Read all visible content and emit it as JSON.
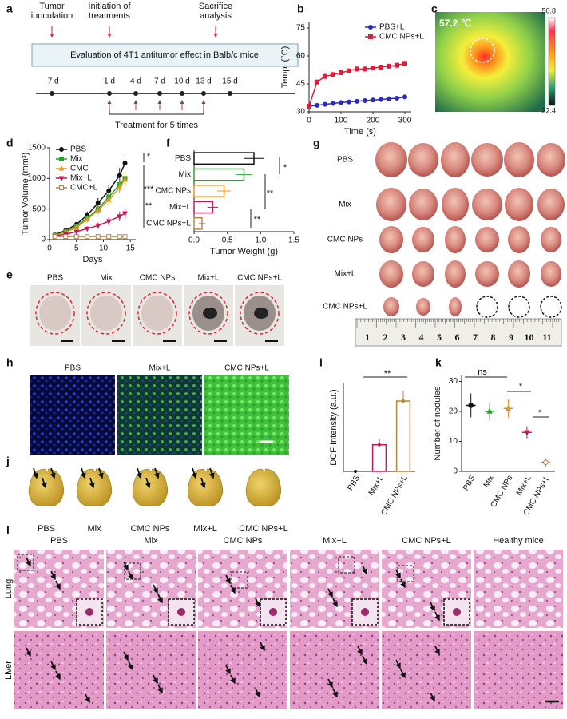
{
  "panel_labels": [
    "a",
    "b",
    "c",
    "d",
    "e",
    "f",
    "g",
    "h",
    "i",
    "j",
    "k",
    "l"
  ],
  "timeline": {
    "title": "Evaluation of 4T1 antitumor effect in Balb/c mice",
    "events": [
      [
        "Tumor",
        "inoculation"
      ],
      [
        "Initiation of",
        "treatments"
      ],
      [
        "Sacrifice",
        "analysis"
      ]
    ],
    "days": [
      "-7 d",
      "1 d",
      "4 d",
      "7 d",
      "10 d",
      "13 d",
      "15 d"
    ],
    "note": "Treatment for 5 times"
  },
  "thermal": {
    "temperature": "57.2 ℃",
    "colorbar_lim": [
      22.4,
      50.8
    ]
  },
  "tumor_photos": {
    "labels": [
      "PBS",
      "Mix",
      "CMC NPs",
      "Mix+L",
      "CMC NPs+L"
    ]
  },
  "excised_tumors": {
    "rows": [
      "PBS",
      "Mix",
      "CMC NPs",
      "Mix+L",
      "CMC NPs+L"
    ],
    "ruler": [
      1,
      2,
      3,
      4,
      5,
      6,
      7,
      8,
      9,
      10,
      11
    ]
  },
  "fluorescence": {
    "labels": [
      "PBS",
      "Mix+L",
      "CMC NPs+L"
    ]
  },
  "lungs": {
    "labels": [
      "PBS",
      "Mix",
      "CMC NPs",
      "Mix+L",
      "CMC NPs+L"
    ]
  },
  "histology": {
    "columns": [
      "PBS",
      "Mix",
      "CMC NPs",
      "Mix+L",
      "CMC NPs+L",
      "Healthy mice"
    ],
    "rows": [
      "Lung",
      "Liver"
    ]
  },
  "chart_data": [
    {
      "type": "line",
      "xlabel": "Time (s)",
      "ylabel": "Temp. (°C)",
      "legend": "upper right",
      "x": [
        0,
        25,
        50,
        75,
        100,
        125,
        150,
        175,
        200,
        225,
        250,
        275,
        300
      ],
      "xlim": [
        0,
        320
      ],
      "xticks": [
        0,
        100,
        200,
        300
      ],
      "ylim": [
        30,
        78
      ],
      "yticks": [
        30,
        45,
        60,
        75
      ],
      "series": [
        {
          "name": "PBS+L",
          "color": "#2b2bb8",
          "marker": "circle",
          "values": [
            33,
            33.5,
            34,
            34.5,
            35,
            35.3,
            35.6,
            36,
            36.3,
            36.6,
            37,
            37.3,
            38
          ]
        },
        {
          "name": "CMC NPs+L",
          "color": "#d4213d",
          "marker": "square",
          "values": [
            33,
            46,
            49,
            50,
            51,
            52,
            53,
            53,
            53.5,
            54,
            54.5,
            55,
            56
          ]
        }
      ]
    },
    {
      "type": "line",
      "xlabel": "Days",
      "ylabel": "Tumor Volume (mm³)",
      "legend": "upper left",
      "x": [
        1,
        3,
        5,
        7,
        9,
        11,
        13,
        14
      ],
      "xlim": [
        0,
        16
      ],
      "xticks": [
        0,
        5,
        10,
        15
      ],
      "ylim": [
        0,
        1500
      ],
      "yticks": [
        0,
        500,
        1000,
        1500
      ],
      "annotations": [
        "*",
        "***",
        "**"
      ],
      "series": [
        {
          "name": "PBS",
          "color": "#111111",
          "marker": "circle",
          "values": [
            80,
            150,
            250,
            400,
            600,
            800,
            1050,
            1250
          ],
          "errors": [
            10,
            25,
            40,
            60,
            80,
            100,
            120,
            120
          ]
        },
        {
          "name": "Mix",
          "color": "#2ca02c",
          "marker": "square",
          "values": [
            70,
            130,
            220,
            350,
            500,
            700,
            900,
            1000
          ],
          "errors": [
            10,
            20,
            35,
            50,
            70,
            90,
            100,
            100
          ]
        },
        {
          "name": "CMC",
          "color": "#e69524",
          "marker": "triangle",
          "values": [
            70,
            120,
            200,
            330,
            480,
            650,
            850,
            980
          ],
          "errors": [
            10,
            20,
            30,
            50,
            60,
            80,
            90,
            100
          ]
        },
        {
          "name": "Mix+L",
          "color": "#c2185b",
          "marker": "triangle-down",
          "values": [
            60,
            90,
            130,
            180,
            230,
            300,
            380,
            430
          ],
          "errors": [
            10,
            15,
            25,
            35,
            50,
            70,
            80,
            90
          ]
        },
        {
          "name": "CMC+L",
          "color": "#b08850",
          "marker": "square",
          "values": [
            50,
            50,
            50,
            50,
            50,
            50,
            50,
            50
          ],
          "errors": [
            10,
            10,
            10,
            15,
            15,
            20,
            20,
            20
          ]
        }
      ]
    },
    {
      "type": "bar",
      "orientation": "horizontal",
      "xlabel": "Tumor Weight (g)",
      "categories": [
        "PBS",
        "Mix",
        "CMC NPs",
        "Mix+L",
        "CMC NPs+L"
      ],
      "values": [
        0.9,
        0.75,
        0.45,
        0.28,
        0.12
      ],
      "errors": [
        0.15,
        0.12,
        0.1,
        0.08,
        0.05
      ],
      "colors": [
        "#111111",
        "#2ca02c",
        "#e69524",
        "#c2185b",
        "#b08850"
      ],
      "xlim": [
        0,
        1.5
      ],
      "xticks": [
        {
          "value": 0,
          "label": "0.0"
        },
        0.5,
        {
          "value": 1,
          "label": "1.0"
        },
        1.5
      ],
      "annotations": [
        "*",
        "**",
        "**"
      ]
    },
    {
      "type": "bar",
      "ylabel": "DCF Intensity (a.u.)",
      "categories": [
        "PBS",
        "Mix+L",
        "CMC NPs+L"
      ],
      "values": [
        0,
        65,
        172
      ],
      "errors": [
        1,
        15,
        25
      ],
      "colors": [
        "#111111",
        "#c2185b",
        "#b8862b"
      ],
      "ylim": [
        0,
        215
      ],
      "annotations": [
        "**"
      ]
    },
    {
      "type": "dot",
      "ylabel": "Number of nodules",
      "categories": [
        "PBS",
        "Mix",
        "CMC NPs",
        "Mix+L",
        "CMC NPs+L"
      ],
      "values": [
        22,
        20,
        21,
        13,
        3
      ],
      "errors": [
        4,
        3,
        3,
        2,
        1.5
      ],
      "colors": [
        "#111111",
        "#2ca02c",
        "#e69524",
        "#c2185b",
        "#b08850"
      ],
      "markers": [
        "circle",
        "triangle",
        "triangle",
        "triangle-down",
        "circle"
      ],
      "ylim": [
        0,
        32
      ],
      "yticks": [
        0,
        10,
        20,
        30
      ],
      "annotations": [
        "ns",
        "*",
        "*"
      ]
    }
  ]
}
